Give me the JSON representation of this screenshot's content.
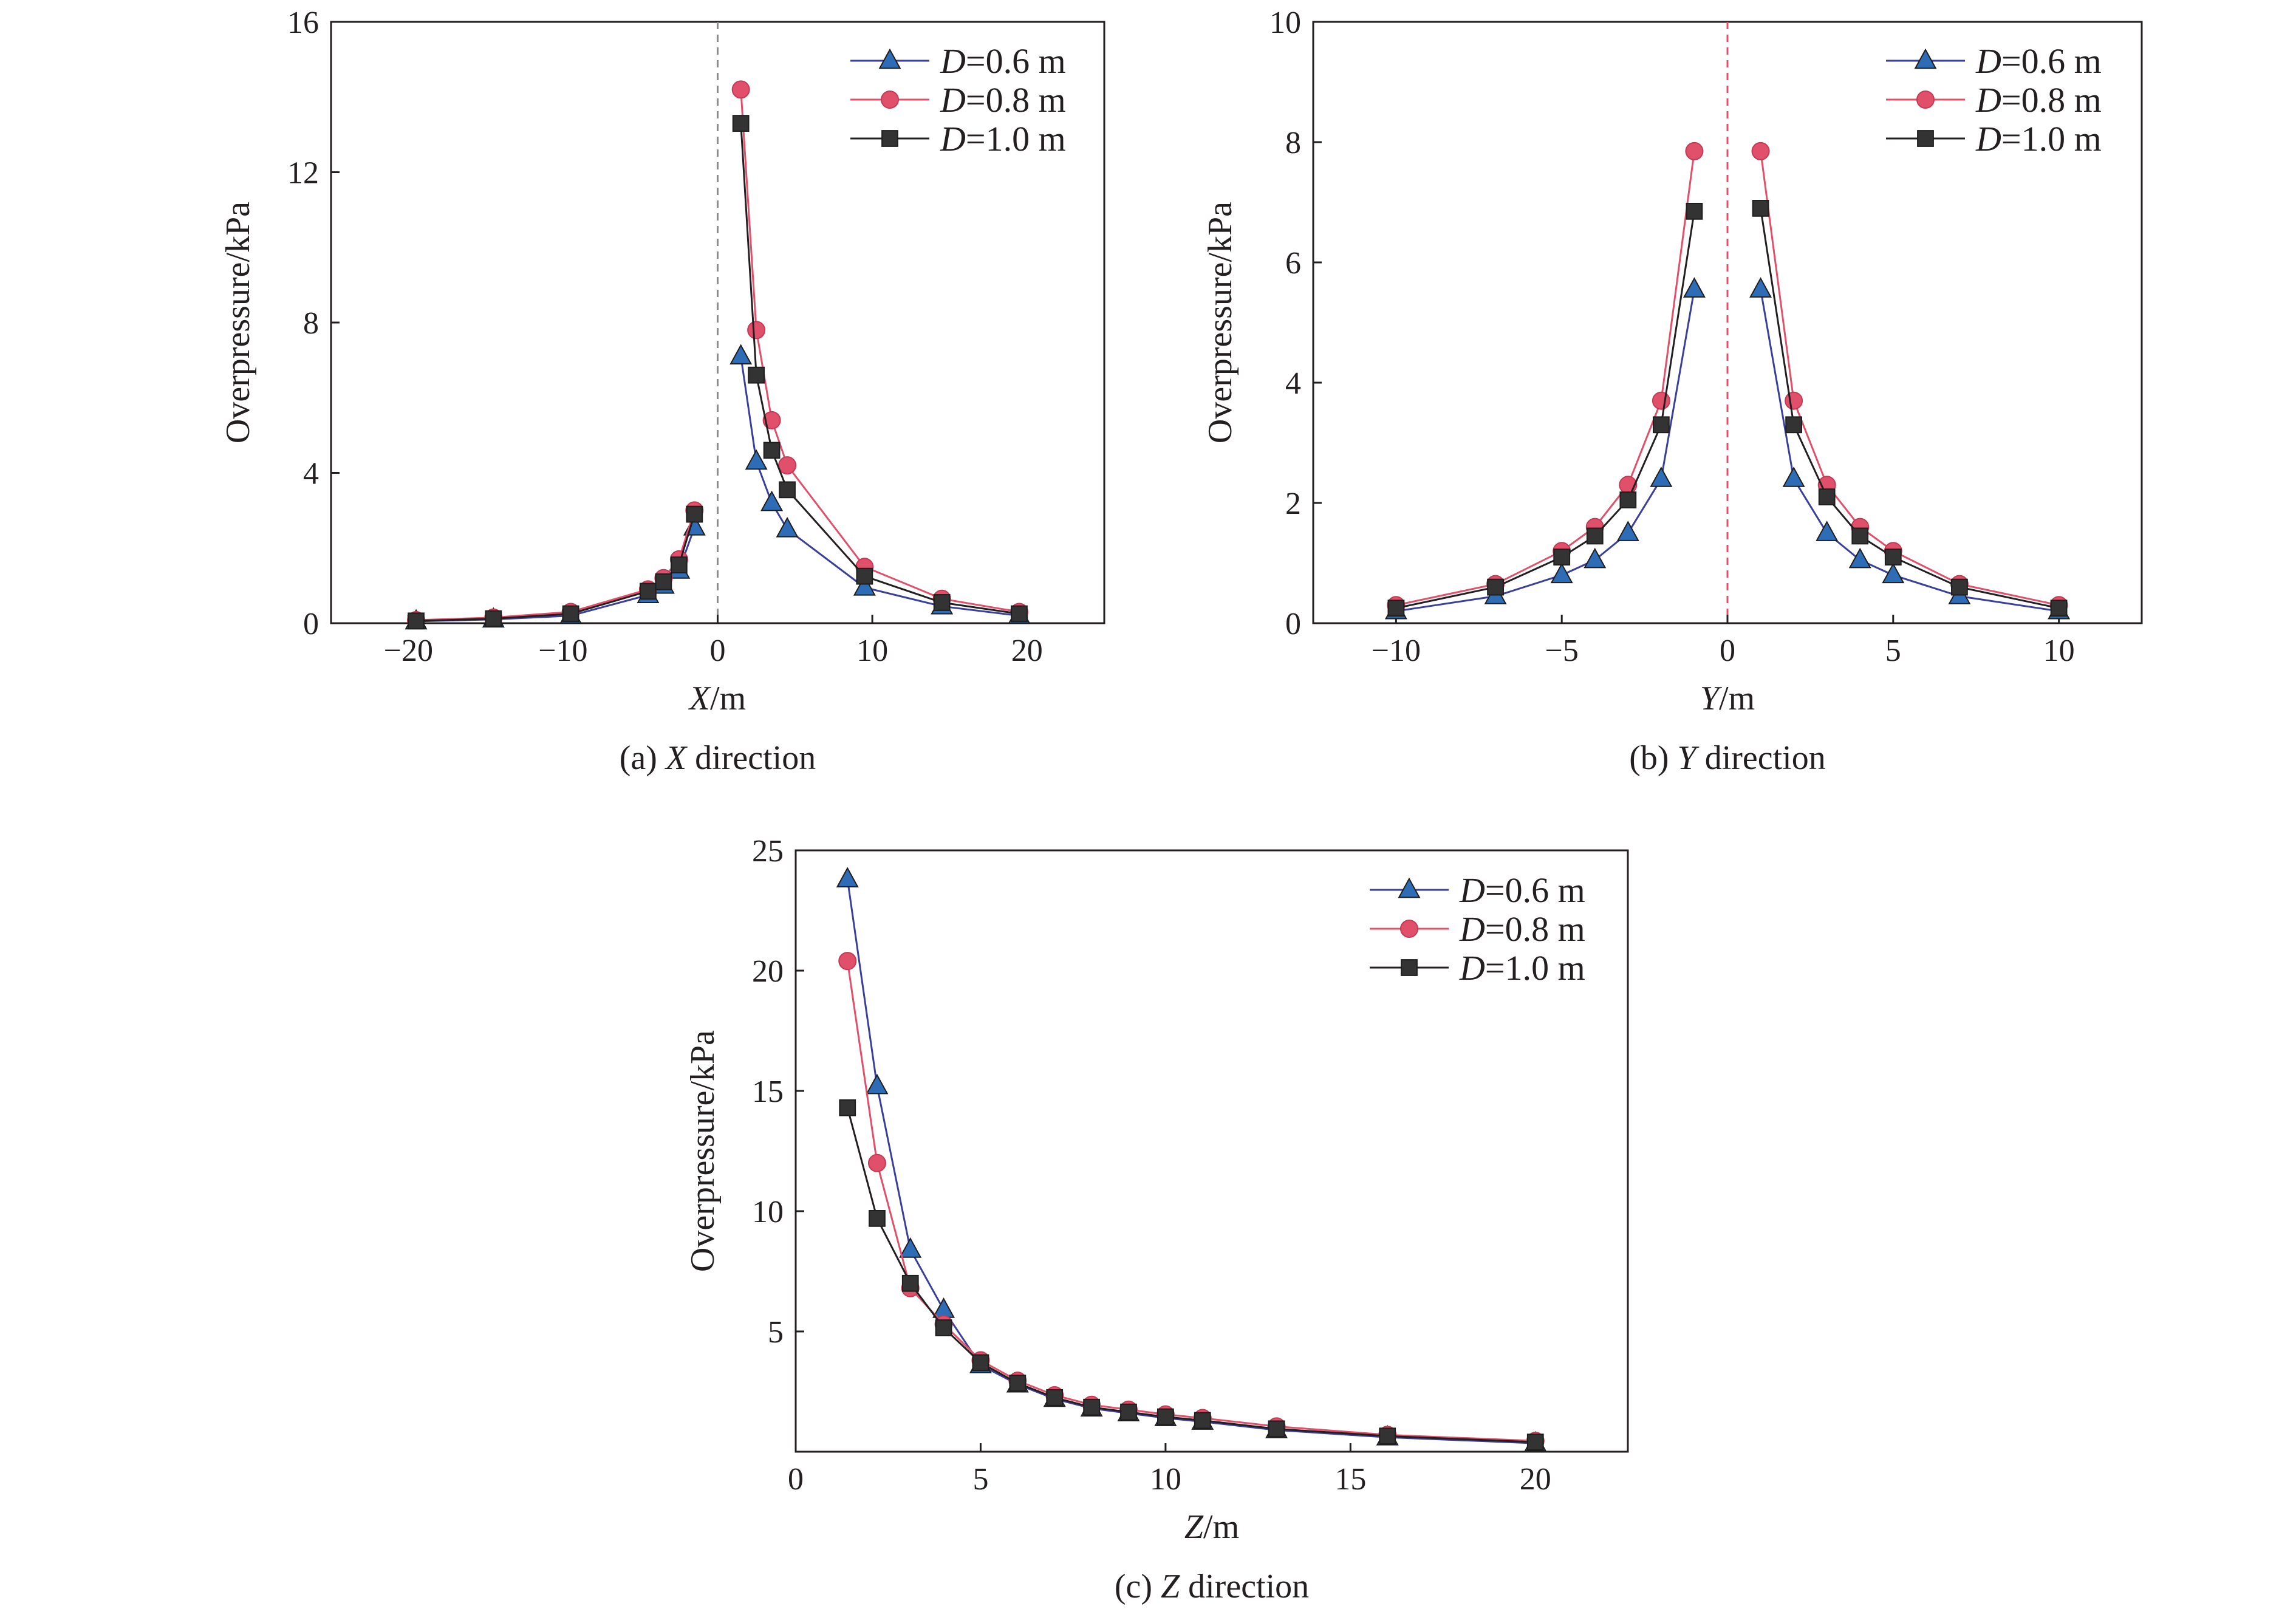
{
  "figure": {
    "colors": {
      "frame": "#231f20",
      "zero_line": "#8c8c8c",
      "zero_line_y": "#e0506a"
    }
  },
  "chart_data": [
    {
      "id": "a",
      "type": "line",
      "caption_prefix": "(a) ",
      "caption_var": "X",
      "caption_suffix": " direction",
      "xlabel_var": "X",
      "xlabel_unit": "/m",
      "ylabel": "Overpressure/kPa",
      "xlim": [
        -25,
        25
      ],
      "ylim": [
        0,
        16
      ],
      "xticks": [
        -20,
        -10,
        0,
        10,
        20
      ],
      "yticks": [
        0,
        4,
        8,
        12,
        16
      ],
      "xtick_labels": [
        "−20",
        "−10",
        "0",
        "10",
        "20"
      ],
      "ytick_labels": [
        "0",
        "4",
        "8",
        "12",
        "16"
      ],
      "zero_line": "dashed",
      "legend_position": "top-right",
      "series": [
        {
          "name_var": "D",
          "name_value": "=0.6 m",
          "color": "#3a3f9a",
          "marker": "triangle",
          "marker_color": "#2e6db5",
          "segments": [
            [
              [
                -19.5,
                0.05
              ],
              [
                -14.5,
                0.1
              ],
              [
                -9.5,
                0.2
              ],
              [
                -4.5,
                0.75
              ],
              [
                -3.5,
                1.0
              ],
              [
                -2.5,
                1.4
              ],
              [
                -1.5,
                2.55
              ]
            ],
            [
              [
                1.5,
                7.1
              ],
              [
                2.5,
                4.3
              ],
              [
                3.5,
                3.2
              ],
              [
                4.5,
                2.5
              ],
              [
                9.5,
                0.95
              ],
              [
                14.5,
                0.45
              ],
              [
                19.5,
                0.2
              ]
            ]
          ]
        },
        {
          "name_var": "D",
          "name_value": "=0.8 m",
          "color": "#e0506a",
          "marker": "circle",
          "marker_color": "#e0506a",
          "segments": [
            [
              [
                -19.5,
                0.08
              ],
              [
                -14.5,
                0.15
              ],
              [
                -9.5,
                0.3
              ],
              [
                -4.5,
                0.9
              ],
              [
                -3.5,
                1.2
              ],
              [
                -2.5,
                1.7
              ],
              [
                -1.5,
                3.0
              ]
            ],
            [
              [
                1.5,
                14.2
              ],
              [
                2.5,
                7.8
              ],
              [
                3.5,
                5.4
              ],
              [
                4.5,
                4.2
              ],
              [
                9.5,
                1.5
              ],
              [
                14.5,
                0.65
              ],
              [
                19.5,
                0.3
              ]
            ]
          ]
        },
        {
          "name_var": "D",
          "name_value": "=1.0 m",
          "color": "#231f20",
          "marker": "square",
          "marker_color": "#333333",
          "segments": [
            [
              [
                -19.5,
                0.06
              ],
              [
                -14.5,
                0.12
              ],
              [
                -9.5,
                0.25
              ],
              [
                -4.5,
                0.85
              ],
              [
                -3.5,
                1.1
              ],
              [
                -2.5,
                1.55
              ],
              [
                -1.5,
                2.9
              ]
            ],
            [
              [
                1.5,
                13.3
              ],
              [
                2.5,
                6.6
              ],
              [
                3.5,
                4.6
              ],
              [
                4.5,
                3.55
              ],
              [
                9.5,
                1.25
              ],
              [
                14.5,
                0.55
              ],
              [
                19.5,
                0.25
              ]
            ]
          ]
        }
      ]
    },
    {
      "id": "b",
      "type": "line",
      "caption_prefix": "(b) ",
      "caption_var": "Y",
      "caption_suffix": " direction",
      "xlabel_var": "Y",
      "xlabel_unit": "/m",
      "ylabel": "Overpressure/kPa",
      "xlim": [
        -12.5,
        12.5
      ],
      "ylim": [
        0,
        10
      ],
      "xticks": [
        -10,
        -5,
        0,
        5,
        10
      ],
      "yticks": [
        0,
        2,
        4,
        6,
        8,
        10
      ],
      "xtick_labels": [
        "−10",
        "−5",
        "0",
        "5",
        "10"
      ],
      "ytick_labels": [
        "0",
        "2",
        "4",
        "6",
        "8",
        "10"
      ],
      "zero_line": "dashed",
      "legend_position": "top-right",
      "series": [
        {
          "name_var": "D",
          "name_value": "=0.6 m",
          "color": "#3a3f9a",
          "marker": "triangle",
          "marker_color": "#2e6db5",
          "segments": [
            [
              [
                -10,
                0.2
              ],
              [
                -7,
                0.45
              ],
              [
                -5,
                0.8
              ],
              [
                -4,
                1.05
              ],
              [
                -3,
                1.5
              ],
              [
                -2,
                2.4
              ],
              [
                -1,
                5.55
              ]
            ],
            [
              [
                1,
                5.55
              ],
              [
                2,
                2.4
              ],
              [
                3,
                1.5
              ],
              [
                4,
                1.05
              ],
              [
                5,
                0.8
              ],
              [
                7,
                0.45
              ],
              [
                10,
                0.2
              ]
            ]
          ]
        },
        {
          "name_var": "D",
          "name_value": "=0.8 m",
          "color": "#e0506a",
          "marker": "circle",
          "marker_color": "#e0506a",
          "segments": [
            [
              [
                -10,
                0.3
              ],
              [
                -7,
                0.65
              ],
              [
                -5,
                1.2
              ],
              [
                -4,
                1.6
              ],
              [
                -3,
                2.3
              ],
              [
                -2,
                3.7
              ],
              [
                -1,
                7.85
              ]
            ],
            [
              [
                1,
                7.85
              ],
              [
                2,
                3.7
              ],
              [
                3,
                2.3
              ],
              [
                4,
                1.6
              ],
              [
                5,
                1.2
              ],
              [
                7,
                0.65
              ],
              [
                10,
                0.3
              ]
            ]
          ]
        },
        {
          "name_var": "D",
          "name_value": "=1.0 m",
          "color": "#231f20",
          "marker": "square",
          "marker_color": "#333333",
          "segments": [
            [
              [
                -10,
                0.25
              ],
              [
                -7,
                0.6
              ],
              [
                -5,
                1.1
              ],
              [
                -4,
                1.45
              ],
              [
                -3,
                2.05
              ],
              [
                -2,
                3.3
              ],
              [
                -1,
                6.85
              ]
            ],
            [
              [
                1,
                6.9
              ],
              [
                2,
                3.3
              ],
              [
                3,
                2.1
              ],
              [
                4,
                1.45
              ],
              [
                5,
                1.1
              ],
              [
                7,
                0.6
              ],
              [
                10,
                0.25
              ]
            ]
          ]
        }
      ]
    },
    {
      "id": "c",
      "type": "line",
      "caption_prefix": "(c) ",
      "caption_var": "Z",
      "caption_suffix": " direction",
      "xlabel_var": "Z",
      "xlabel_unit": "/m",
      "ylabel": "Overpressure/kPa",
      "xlim": [
        0,
        22.5
      ],
      "ylim": [
        0,
        25
      ],
      "xticks": [
        0,
        5,
        10,
        15,
        20
      ],
      "yticks": [
        5,
        10,
        15,
        20,
        25
      ],
      "xtick_labels": [
        "0",
        "5",
        "10",
        "15",
        "20"
      ],
      "ytick_labels": [
        "5",
        "10",
        "15",
        "20",
        "25"
      ],
      "zero_line": "none",
      "legend_position": "top-right",
      "series": [
        {
          "name_var": "D",
          "name_value": "=0.6 m",
          "color": "#3a3f9a",
          "marker": "triangle",
          "marker_color": "#2e6db5",
          "segments": [
            [
              [
                1.4,
                23.8
              ],
              [
                2.2,
                15.2
              ],
              [
                3.1,
                8.4
              ],
              [
                4.0,
                5.9
              ],
              [
                5,
                3.6
              ],
              [
                6,
                2.8
              ],
              [
                7,
                2.2
              ],
              [
                8,
                1.8
              ],
              [
                9,
                1.6
              ],
              [
                10,
                1.4
              ],
              [
                11,
                1.25
              ],
              [
                13,
                0.9
              ],
              [
                16,
                0.6
              ],
              [
                20,
                0.35
              ]
            ]
          ]
        },
        {
          "name_var": "D",
          "name_value": "=0.8 m",
          "color": "#e0506a",
          "marker": "circle",
          "marker_color": "#e0506a",
          "segments": [
            [
              [
                1.4,
                20.4
              ],
              [
                2.2,
                12.0
              ],
              [
                3.1,
                6.8
              ],
              [
                4.0,
                5.3
              ],
              [
                5,
                3.8
              ],
              [
                6,
                2.95
              ],
              [
                7,
                2.35
              ],
              [
                8,
                1.95
              ],
              [
                9,
                1.75
              ],
              [
                10,
                1.55
              ],
              [
                11,
                1.4
              ],
              [
                13,
                1.05
              ],
              [
                16,
                0.7
              ],
              [
                20,
                0.45
              ]
            ]
          ]
        },
        {
          "name_var": "D",
          "name_value": "=1.0 m",
          "color": "#231f20",
          "marker": "square",
          "marker_color": "#333333",
          "segments": [
            [
              [
                1.4,
                14.3
              ],
              [
                2.2,
                9.7
              ],
              [
                3.1,
                7.0
              ],
              [
                4.0,
                5.15
              ],
              [
                5,
                3.7
              ],
              [
                6,
                2.85
              ],
              [
                7,
                2.25
              ],
              [
                8,
                1.85
              ],
              [
                9,
                1.65
              ],
              [
                10,
                1.45
              ],
              [
                11,
                1.3
              ],
              [
                13,
                0.95
              ],
              [
                16,
                0.65
              ],
              [
                20,
                0.4
              ]
            ]
          ]
        }
      ]
    }
  ]
}
